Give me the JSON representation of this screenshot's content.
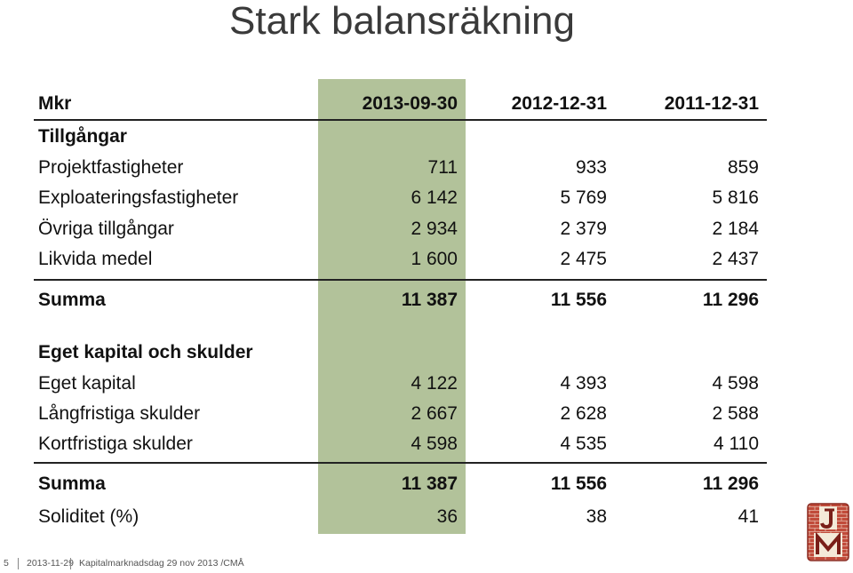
{
  "title": "Stark balansräkning",
  "header": {
    "unit": "Mkr",
    "col1": "2013-09-30",
    "col2": "2012-12-31",
    "col3": "2011-12-31"
  },
  "assets": {
    "heading": "Tillgångar",
    "rows": [
      {
        "label": "Projektfastigheter",
        "v1": "711",
        "v2": "933",
        "v3": "859"
      },
      {
        "label": "Exploateringsfastigheter",
        "v1": "6 142",
        "v2": "5 769",
        "v3": "5 816"
      },
      {
        "label": "Övriga tillgångar",
        "v1": "2 934",
        "v2": "2 379",
        "v3": "2 184"
      },
      {
        "label": "Likvida medel",
        "v1": "1 600",
        "v2": "2 475",
        "v3": "2 437"
      }
    ],
    "total": {
      "label": "Summa",
      "v1": "11 387",
      "v2": "11 556",
      "v3": "11 296"
    }
  },
  "liabilities": {
    "heading": "Eget kapital och skulder",
    "rows": [
      {
        "label": "Eget kapital",
        "v1": "4 122",
        "v2": "4 393",
        "v3": "4 598"
      },
      {
        "label": "Långfristiga skulder",
        "v1": "2 667",
        "v2": "2 628",
        "v3": "2 588"
      },
      {
        "label": "Kortfristiga skulder",
        "v1": "4 598",
        "v2": "4 535",
        "v3": "4 110"
      }
    ],
    "total": {
      "label": "Summa",
      "v1": "11 387",
      "v2": "11 556",
      "v3": "11 296"
    }
  },
  "solidity": {
    "label": "Soliditet (%)",
    "v1": "36",
    "v2": "38",
    "v3": "41"
  },
  "footer": {
    "page": "5",
    "date": "2013-11-29",
    "text": "Kapitalmarknadsdag 29 nov 2013 /CMÅ"
  },
  "logo": {
    "text": "JM",
    "color": "#b8322a"
  },
  "colors": {
    "highlight_column": "#b2c29a",
    "title": "#3a3a3a"
  }
}
